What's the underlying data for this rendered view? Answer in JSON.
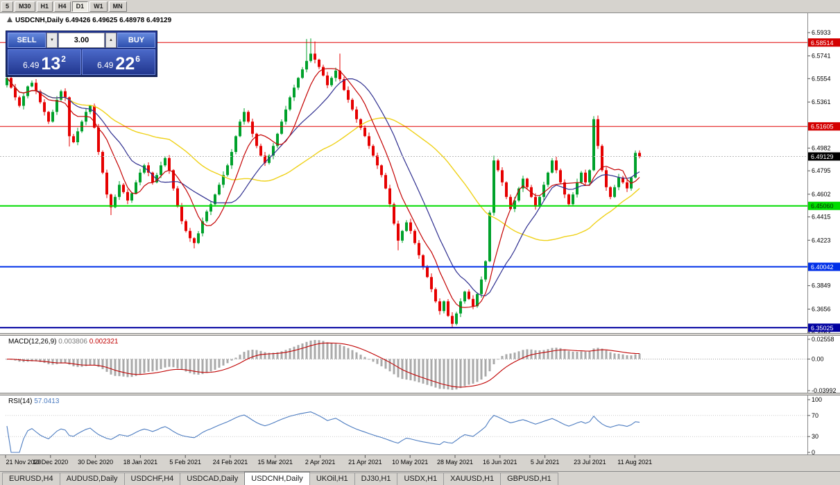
{
  "toolbar": {
    "timeframes": [
      "5",
      "M30",
      "H1",
      "H4",
      "D1",
      "W1",
      "MN"
    ],
    "active": "D1"
  },
  "chart": {
    "title": "USDCNH,Daily",
    "ohlc_text": "6.49426 6.49625 6.48978 6.49129"
  },
  "trade_panel": {
    "sell_label": "SELL",
    "buy_label": "BUY",
    "volume": "3.00",
    "bid_small": "6.49",
    "bid_big": "13",
    "bid_sup": "2",
    "ask_small": "6.49",
    "ask_big": "22",
    "ask_sup": "6"
  },
  "price_axis": {
    "ticks": [
      "6.5933",
      "6.5741",
      "6.5554",
      "6.5361",
      "6.4982",
      "6.4795",
      "6.4602",
      "6.4415",
      "6.4223",
      "6.3849",
      "6.3656",
      "6.3463"
    ],
    "levels": [
      {
        "label": "6.58514",
        "value": 6.58514,
        "line_color": "#E00000",
        "bg": "#D40000",
        "fg": "#FFFFFF",
        "width": 1
      },
      {
        "label": "6.51605",
        "value": 6.51605,
        "line_color": "#E00000",
        "bg": "#D40000",
        "fg": "#FFFFFF",
        "width": 1
      },
      {
        "label": "6.45060",
        "value": 6.4506,
        "line_color": "#00DC00",
        "bg": "#00DC00",
        "fg": "#0A2A0A",
        "width": 2
      },
      {
        "label": "6.40042",
        "value": 6.40042,
        "line_color": "#0030E8",
        "bg": "#0030E8",
        "fg": "#FFFFFF",
        "width": 2
      },
      {
        "label": "6.35025",
        "value": 6.35025,
        "line_color": "#0000A0",
        "bg": "#0000A0",
        "fg": "#FFFFFF",
        "width": 2
      }
    ],
    "current": {
      "label": "6.49129",
      "value": 6.49129
    }
  },
  "chart_data": {
    "type": "candlestick",
    "symbol": "USDCNH",
    "timeframe": "Daily",
    "last_ohlc": {
      "open": 6.49426,
      "high": 6.49625,
      "low": 6.48978,
      "close": 6.49129
    },
    "x_labels": [
      "21 Nov 2020",
      "10 Dec 2020",
      "30 Dec 2020",
      "18 Jan 2021",
      "5 Feb 2021",
      "24 Feb 2021",
      "15 Mar 2021",
      "2 Apr 2021",
      "21 Apr 2021",
      "10 May 2021",
      "28 May 2021",
      "16 Jun 2021",
      "5 Jul 2021",
      "23 Jul 2021",
      "11 Aug 2021"
    ],
    "first_open": 6.55,
    "closes": [
      6.556,
      6.548,
      6.54,
      6.533,
      6.541,
      6.549,
      6.552,
      6.545,
      6.536,
      6.528,
      6.52,
      6.528,
      6.538,
      6.545,
      6.54,
      6.508,
      6.503,
      6.512,
      6.52,
      6.528,
      6.533,
      6.515,
      6.495,
      6.478,
      6.46,
      6.4495,
      6.458,
      6.468,
      6.462,
      6.455,
      6.461,
      6.47,
      6.478,
      6.484,
      6.478,
      6.47,
      6.476,
      6.484,
      6.49,
      6.48,
      6.465,
      6.45,
      6.438,
      6.43,
      6.424,
      6.42,
      6.428,
      6.438,
      6.446,
      6.452,
      6.46,
      6.468,
      6.476,
      6.484,
      6.495,
      6.508,
      6.52,
      6.528,
      6.52,
      6.51,
      6.5,
      6.492,
      6.486,
      6.492,
      6.5,
      6.51,
      6.52,
      6.53,
      6.54,
      6.548,
      6.556,
      6.563,
      6.57,
      6.576,
      6.571,
      6.565,
      6.558,
      6.55,
      6.556,
      6.562,
      6.555,
      6.546,
      6.538,
      6.53,
      6.522,
      6.515,
      6.508,
      6.5,
      6.492,
      6.484,
      6.476,
      6.465,
      6.452,
      6.436,
      6.422,
      6.43,
      6.437,
      6.43,
      6.42,
      6.41,
      6.4,
      6.392,
      6.382,
      6.372,
      6.364,
      6.372,
      6.36,
      6.3535,
      6.362,
      6.372,
      6.38,
      6.374,
      6.368,
      6.378,
      6.39,
      6.405,
      6.445,
      6.488,
      6.48,
      6.47,
      6.458,
      6.448,
      6.455,
      6.465,
      6.473,
      6.466,
      6.458,
      6.45,
      6.458,
      6.468,
      6.478,
      6.488,
      6.48,
      6.47,
      6.46,
      6.452,
      6.46,
      6.47,
      6.478,
      6.47,
      6.48,
      6.522,
      6.5,
      6.48,
      6.466,
      6.458,
      6.466,
      6.474,
      6.47,
      6.465,
      6.474,
      6.4943,
      6.4913
    ],
    "wick_overrides": {
      "15": {
        "l": 6.4995
      },
      "25": {
        "l": 6.443
      },
      "45": {
        "l": 6.4156
      },
      "72": {
        "h": 6.588
      },
      "73": {
        "h": 6.5885
      },
      "74": {
        "h": 6.586
      },
      "80": {
        "h": 6.576
      },
      "94": {
        "l": 6.414
      },
      "107": {
        "l": 6.3503
      },
      "117": {
        "h": 6.492
      },
      "141": {
        "h": 6.5245
      },
      "152": {
        "o": 6.49426,
        "h": 6.49625,
        "l": 6.48978
      }
    },
    "candle_colors": {
      "up": "#00A12B",
      "down": "#E60000"
    },
    "moving_averages": [
      {
        "name": "slow-yellow",
        "period": 40,
        "color": "#EFD117",
        "width": 1.4
      },
      {
        "name": "mid-navy",
        "period": 16,
        "color": "#2E2E8F",
        "width": 1.2
      },
      {
        "name": "fast-red",
        "period": 8,
        "color": "#C40000",
        "width": 1.2
      }
    ],
    "levels": [
      "6.58514",
      "6.51605",
      "6.45060",
      "6.40042",
      "6.35025"
    ],
    "indicators": {
      "macd": {
        "label": "MACD(12,26,9)",
        "value_main": "0.003806",
        "value_signal": "0.002321",
        "axis": [
          "0.02558",
          "0.00",
          "-0.03992"
        ]
      },
      "rsi": {
        "label": "RSI(14)",
        "value": "57.0413",
        "axis": [
          "100",
          "70",
          "30",
          "0"
        ]
      }
    }
  },
  "tabs": {
    "items": [
      {
        "label": "EURUSD,H4"
      },
      {
        "label": "AUDUSD,Daily"
      },
      {
        "label": "USDCHF,H4"
      },
      {
        "label": "USDCAD,Daily"
      },
      {
        "label": "USDCNH,Daily"
      },
      {
        "label": "UKOil,H1"
      },
      {
        "label": "DJ30,H1"
      },
      {
        "label": "USDX,H1"
      },
      {
        "label": "XAUUSD,H1"
      },
      {
        "label": "GBPUSD,H1"
      }
    ],
    "active": "USDCNH,Daily"
  }
}
